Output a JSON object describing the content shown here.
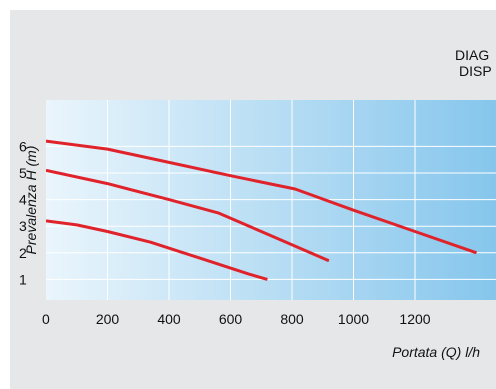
{
  "heading": {
    "line1": "DIAG",
    "line2": "DISP"
  },
  "chart_data": {
    "type": "line",
    "title": "",
    "xlabel": "Portata (Q) l/h",
    "ylabel": "Prevalenza H (m)",
    "xlim": [
      0,
      1400
    ],
    "ylim": [
      0,
      7
    ],
    "x_ticks": [
      "0",
      "200",
      "400",
      "600",
      "800",
      "1000",
      "1200"
    ],
    "y_ticks": [
      "1",
      "2",
      "3",
      "4",
      "5",
      "6"
    ],
    "grid": true,
    "series": [
      {
        "x": [
          0,
          200,
          400,
          600,
          810,
          1000,
          1200,
          1400
        ],
        "y": [
          6.2,
          5.9,
          5.4,
          4.9,
          4.4,
          3.6,
          2.8,
          2.0
        ]
      },
      {
        "x": [
          0,
          200,
          400,
          560,
          700,
          860,
          920
        ],
        "y": [
          5.1,
          4.6,
          4.0,
          3.5,
          2.8,
          2.0,
          1.7
        ]
      },
      {
        "x": [
          0,
          100,
          200,
          340,
          500,
          660,
          720
        ],
        "y": [
          3.2,
          3.05,
          2.8,
          2.4,
          1.8,
          1.2,
          1.0
        ]
      }
    ],
    "colors": {
      "line": "#e0232a",
      "grid": "#ffffff",
      "plot_light": "#eaf5fc",
      "plot_dark": "#86c6ec"
    }
  }
}
